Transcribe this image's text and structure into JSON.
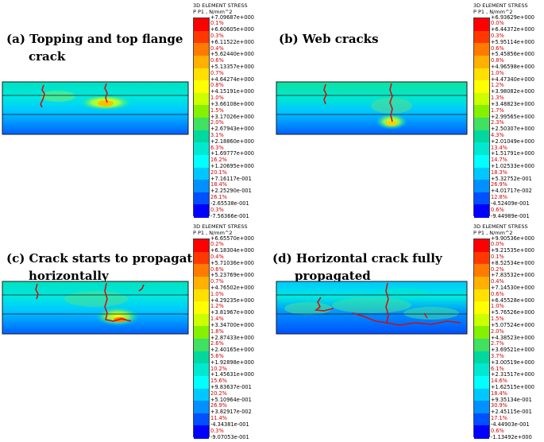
{
  "panels": [
    {
      "id": "a",
      "title_line1": "(a) Topping and top flange",
      "title_line2": "crack",
      "legend": {
        "title1": "3D ELEMENT STRESS",
        "title2": "P P1 , N/mm^2",
        "values": [
          "+7.09687e+000",
          "+6.60605e+000",
          "+6.11522e+000",
          "+5.62440e+000",
          "+5.13357e+000",
          "+4.64274e+000",
          "+4.15191e+000",
          "+3.66108e+000",
          "+3.17026e+000",
          "+2.67943e+000",
          "+2.18860e+000",
          "+1.69777e+000",
          "+1.20695e+000",
          "+7.16117e-001",
          "+2.25290e-001",
          "-2.65538e-001",
          "-7.56366e-001"
        ],
        "percents": [
          "0.1%",
          "0.3%",
          "0.4%",
          "0.6%",
          "0.7%",
          "0.8%",
          "1.0%",
          "1.5%",
          "2.0%",
          "3.1%",
          "6.3%",
          "16.2%",
          "20.1%",
          "18.4%",
          "26.1%",
          "0.3%"
        ]
      }
    },
    {
      "id": "b",
      "title_line1": "(b) Web cracks",
      "title_line2": "",
      "legend": {
        "title1": "3D ELEMENT STRESS",
        "title2": "P P1 , N/mm^2",
        "values": [
          "+6.93629e+000",
          "+6.44372e+000",
          "+5.95114e+000",
          "+5.45856e+000",
          "+4.96598e+000",
          "+4.47340e+000",
          "+3.98082e+000",
          "+3.48823e+000",
          "+2.99565e+000",
          "+2.50307e+000",
          "+2.01049e+000",
          "+1.51791e+000",
          "+1.02533e+000",
          "+5.32752e-001",
          "+4.01717e-002",
          "-4.52409e-001",
          "-9.44989e-001"
        ],
        "percents": [
          "0.0%",
          "0.3%",
          "0.6%",
          "0.8%",
          "1.0%",
          "1.2%",
          "1.3%",
          "1.7%",
          "2.3%",
          "4.3%",
          "13.4%",
          "14.7%",
          "18.3%",
          "26.9%",
          "12.8%",
          "0.6%"
        ]
      }
    },
    {
      "id": "c",
      "title_line1": "(c) Crack starts to propagate",
      "title_line2": "horizontally",
      "legend": {
        "title1": "3D ELEMENT STRESS",
        "title2": "P P1 , N/mm^2",
        "values": [
          "+6.65570e+000",
          "+6.18304e+000",
          "+5.71036e+000",
          "+5.23769e+000",
          "+4.76502e+000",
          "+4.29235e+000",
          "+3.81967e+000",
          "+3.34700e+000",
          "+2.87433e+000",
          "+2.40165e+000",
          "+1.92898e+000",
          "+1.45631e+000",
          "+9.83637e-001",
          "+5.10964e-001",
          "+3.82917e-002",
          "-4.34381e-001",
          "-9.07053e-001"
        ],
        "percents": [
          "0.2%",
          "0.4%",
          "0.6%",
          "0.7%",
          "1.0%",
          "1.2%",
          "1.4%",
          "1.8%",
          "2.6%",
          "5.6%",
          "10.2%",
          "15.6%",
          "20.2%",
          "26.9%",
          "11.4%",
          "0.3%"
        ]
      }
    },
    {
      "id": "d",
      "title_line1": "(d) Horizontal crack fully",
      "title_line2": "propagated",
      "legend": {
        "title1": "3D ELEMENT STRESS",
        "title2": "P P1 , N/mm^2",
        "values": [
          "+9.90536e+000",
          "+9.21535e+000",
          "+8.52534e+000",
          "+7.83532e+000",
          "+7.14530e+000",
          "+6.45528e+000",
          "+5.76526e+000",
          "+5.07524e+000",
          "+4.38523e+000",
          "+3.69521e+000",
          "+3.00519e+000",
          "+2.31517e+000",
          "+1.62515e+000",
          "+9.35134e-001",
          "+2.45115e-001",
          "-4.44903e-001",
          "-1.13492e+000"
        ],
        "percents": [
          "0.0%",
          "0.1%",
          "0.2%",
          "0.4%",
          "0.6%",
          "1.0%",
          "1.5%",
          "2.0%",
          "2.7%",
          "3.7%",
          "6.1%",
          "14.6%",
          "18.4%",
          "30.9%",
          "17.1%",
          "0.6%"
        ]
      }
    }
  ],
  "colors": {
    "legend_scale": [
      "#ff0000",
      "#ff3800",
      "#ff7a00",
      "#ffb000",
      "#ffe000",
      "#ffff00",
      "#ccff00",
      "#85f000",
      "#40e060",
      "#00d8a0",
      "#00e8d0",
      "#00ffff",
      "#00c8ff",
      "#0090ff",
      "#0050ff",
      "#0000ff"
    ],
    "crack": "#cc1111",
    "beam_outline": "#1a1a1a",
    "percent_text": "#d00000"
  }
}
